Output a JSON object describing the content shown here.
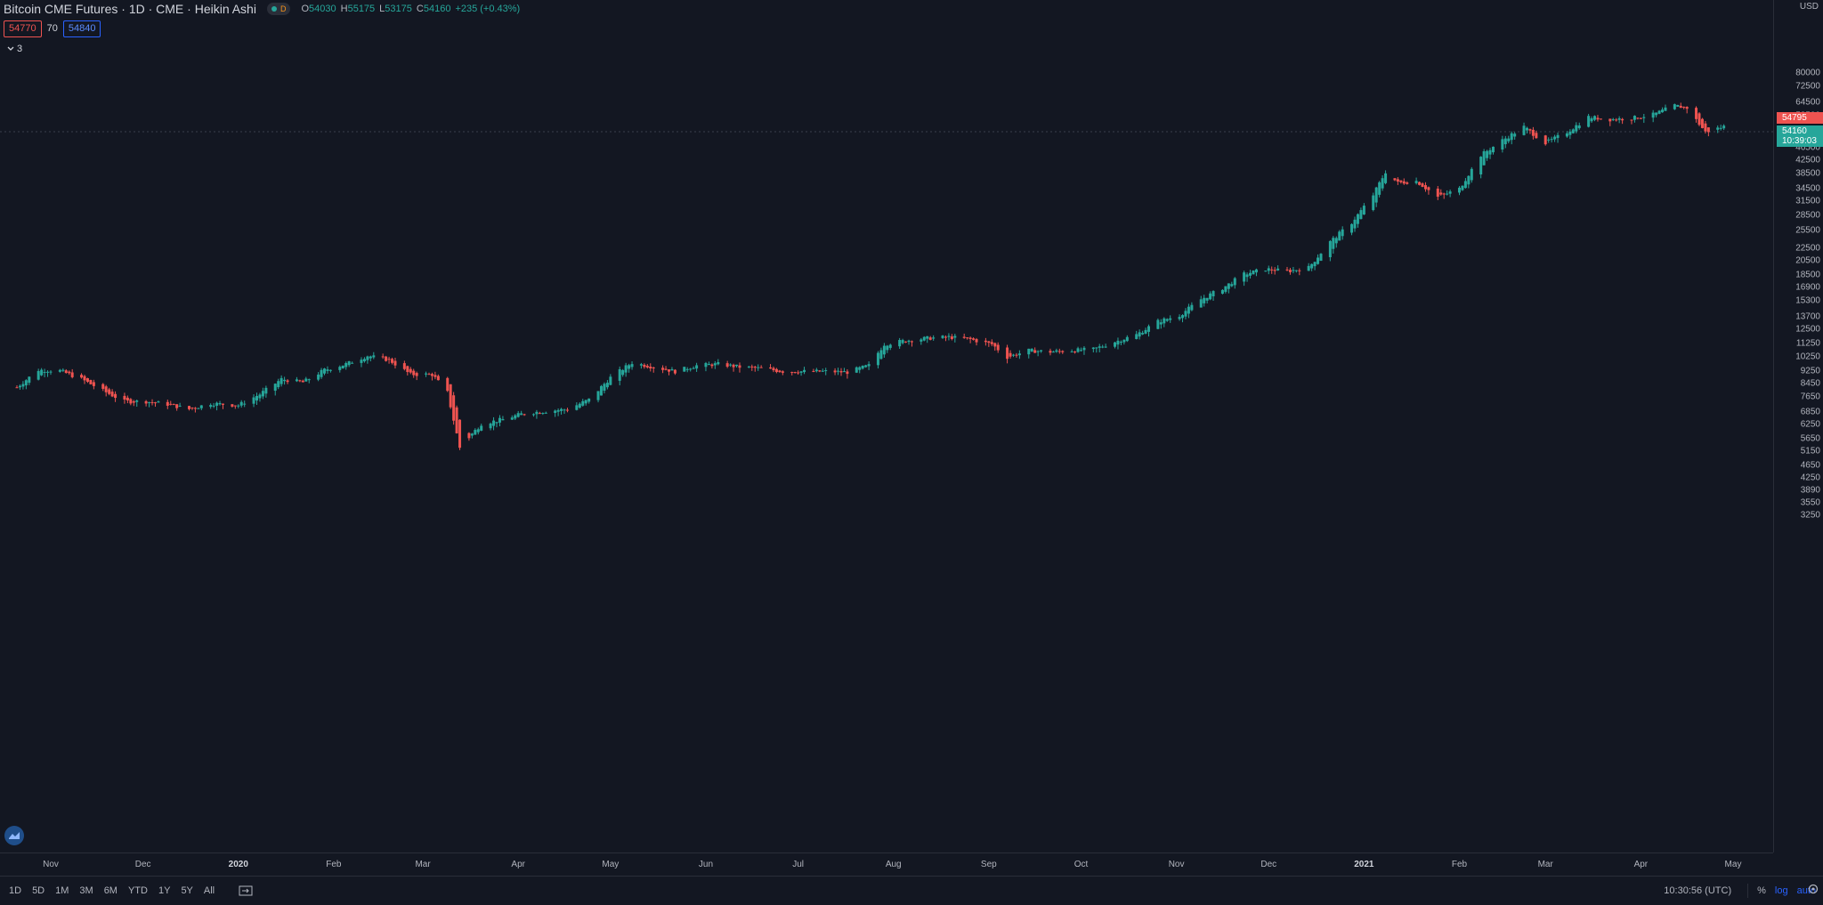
{
  "legend": {
    "title": "Bitcoin CME Futures · 1D · CME · Heikin Ashi",
    "badge_letter": "D",
    "ohlc": [
      {
        "key": "O",
        "value": "54030"
      },
      {
        "key": "H",
        "value": "55175"
      },
      {
        "key": "L",
        "value": "53175"
      },
      {
        "key": "C",
        "value": "54160"
      }
    ],
    "change": "+235 (+0.43%)"
  },
  "trade": {
    "sell": "54770",
    "spread": "70",
    "buy": "54840"
  },
  "indicators": {
    "toggle": "3"
  },
  "price_axis": {
    "unit": "USD",
    "ticks": [
      "80000",
      "72500",
      "64500",
      "58500",
      "46500",
      "42500",
      "38500",
      "34500",
      "31500",
      "28500",
      "25500",
      "22500",
      "20500",
      "18500",
      "16900",
      "15300",
      "13700",
      "12500",
      "11250",
      "10250",
      "9250",
      "8450",
      "7650",
      "6850",
      "6250",
      "5650",
      "5150",
      "4650",
      "4250",
      "3890",
      "3550",
      "3250"
    ],
    "last_price": "54795",
    "last_close": "54160",
    "countdown": "10:39:03"
  },
  "time_axis": {
    "ticks": [
      {
        "label": "Nov",
        "bold": false
      },
      {
        "label": "Dec",
        "bold": false
      },
      {
        "label": "2020",
        "bold": true
      },
      {
        "label": "Feb",
        "bold": false
      },
      {
        "label": "Mar",
        "bold": false
      },
      {
        "label": "Apr",
        "bold": false
      },
      {
        "label": "May",
        "bold": false
      },
      {
        "label": "Jun",
        "bold": false
      },
      {
        "label": "Jul",
        "bold": false
      },
      {
        "label": "Aug",
        "bold": false
      },
      {
        "label": "Sep",
        "bold": false
      },
      {
        "label": "Oct",
        "bold": false
      },
      {
        "label": "Nov",
        "bold": false
      },
      {
        "label": "Dec",
        "bold": false
      },
      {
        "label": "2021",
        "bold": true
      },
      {
        "label": "Feb",
        "bold": false
      },
      {
        "label": "Mar",
        "bold": false
      },
      {
        "label": "Apr",
        "bold": false
      },
      {
        "label": "May",
        "bold": false
      }
    ]
  },
  "bottom_bar": {
    "timeframes": [
      "1D",
      "5D",
      "1M",
      "3M",
      "6M",
      "YTD",
      "1Y",
      "5Y",
      "All"
    ],
    "clock": "10:30:56 (UTC)",
    "percent": "%",
    "log": "log",
    "auto": "auto"
  },
  "colors": {
    "background": "#131722",
    "up": "#26a69a",
    "down": "#ef5350",
    "grid": "#2a2e39",
    "accent": "#2962ff"
  },
  "chart_data": {
    "type": "candlestick-heikin-ashi",
    "scale": "log",
    "unit": "USD",
    "series": [
      {
        "date": "2019-10-21",
        "value": 8200
      },
      {
        "date": "2019-10-28",
        "value": 9300
      },
      {
        "date": "2019-11-04",
        "value": 9250
      },
      {
        "date": "2019-11-11",
        "value": 8700
      },
      {
        "date": "2019-11-18",
        "value": 8000
      },
      {
        "date": "2019-11-25",
        "value": 7400
      },
      {
        "date": "2019-12-02",
        "value": 7400
      },
      {
        "date": "2019-12-09",
        "value": 7250
      },
      {
        "date": "2019-12-16",
        "value": 7000
      },
      {
        "date": "2019-12-23",
        "value": 7300
      },
      {
        "date": "2020-01-01",
        "value": 7200
      },
      {
        "date": "2020-01-08",
        "value": 7800
      },
      {
        "date": "2020-01-15",
        "value": 8700
      },
      {
        "date": "2020-01-22",
        "value": 8500
      },
      {
        "date": "2020-01-29",
        "value": 9300
      },
      {
        "date": "2020-02-05",
        "value": 9700
      },
      {
        "date": "2020-02-12",
        "value": 10300
      },
      {
        "date": "2020-02-19",
        "value": 10000
      },
      {
        "date": "2020-02-26",
        "value": 9000
      },
      {
        "date": "2020-03-04",
        "value": 9000
      },
      {
        "date": "2020-03-09",
        "value": 7900
      },
      {
        "date": "2020-03-13",
        "value": 5300
      },
      {
        "date": "2020-03-20",
        "value": 6300
      },
      {
        "date": "2020-03-27",
        "value": 6500
      },
      {
        "date": "2020-04-03",
        "value": 6800
      },
      {
        "date": "2020-04-10",
        "value": 6900
      },
      {
        "date": "2020-04-17",
        "value": 7000
      },
      {
        "date": "2020-04-24",
        "value": 7500
      },
      {
        "date": "2020-05-01",
        "value": 8800
      },
      {
        "date": "2020-05-08",
        "value": 9800
      },
      {
        "date": "2020-05-15",
        "value": 9500
      },
      {
        "date": "2020-05-22",
        "value": 9200
      },
      {
        "date": "2020-05-29",
        "value": 9600
      },
      {
        "date": "2020-06-05",
        "value": 9700
      },
      {
        "date": "2020-06-12",
        "value": 9500
      },
      {
        "date": "2020-06-19",
        "value": 9400
      },
      {
        "date": "2020-06-26",
        "value": 9200
      },
      {
        "date": "2020-07-03",
        "value": 9200
      },
      {
        "date": "2020-07-10",
        "value": 9200
      },
      {
        "date": "2020-07-17",
        "value": 9150
      },
      {
        "date": "2020-07-24",
        "value": 9600
      },
      {
        "date": "2020-07-29",
        "value": 11200
      },
      {
        "date": "2020-08-05",
        "value": 11500
      },
      {
        "date": "2020-08-12",
        "value": 11700
      },
      {
        "date": "2020-08-19",
        "value": 11800
      },
      {
        "date": "2020-08-26",
        "value": 11600
      },
      {
        "date": "2020-09-02",
        "value": 11200
      },
      {
        "date": "2020-09-07",
        "value": 10200
      },
      {
        "date": "2020-09-14",
        "value": 10700
      },
      {
        "date": "2020-09-21",
        "value": 10600
      },
      {
        "date": "2020-09-28",
        "value": 10700
      },
      {
        "date": "2020-10-05",
        "value": 10800
      },
      {
        "date": "2020-10-12",
        "value": 11400
      },
      {
        "date": "2020-10-19",
        "value": 12000
      },
      {
        "date": "2020-10-26",
        "value": 13200
      },
      {
        "date": "2020-11-02",
        "value": 13800
      },
      {
        "date": "2020-11-09",
        "value": 15500
      },
      {
        "date": "2020-11-16",
        "value": 16800
      },
      {
        "date": "2020-11-23",
        "value": 18600
      },
      {
        "date": "2020-11-30",
        "value": 19300
      },
      {
        "date": "2020-12-07",
        "value": 19000
      },
      {
        "date": "2020-12-14",
        "value": 19500
      },
      {
        "date": "2020-12-21",
        "value": 23500
      },
      {
        "date": "2020-12-28",
        "value": 27000
      },
      {
        "date": "2021-01-04",
        "value": 33000
      },
      {
        "date": "2021-01-08",
        "value": 39000
      },
      {
        "date": "2021-01-12",
        "value": 36000
      },
      {
        "date": "2021-01-18",
        "value": 36500
      },
      {
        "date": "2021-01-25",
        "value": 32500
      },
      {
        "date": "2021-02-01",
        "value": 34500
      },
      {
        "date": "2021-02-08",
        "value": 44000
      },
      {
        "date": "2021-02-15",
        "value": 49000
      },
      {
        "date": "2021-02-22",
        "value": 54000
      },
      {
        "date": "2021-03-01",
        "value": 48000
      },
      {
        "date": "2021-03-08",
        "value": 52000
      },
      {
        "date": "2021-03-15",
        "value": 58000
      },
      {
        "date": "2021-03-22",
        "value": 57000
      },
      {
        "date": "2021-03-29",
        "value": 57500
      },
      {
        "date": "2021-04-05",
        "value": 59000
      },
      {
        "date": "2021-04-12",
        "value": 63000
      },
      {
        "date": "2021-04-16",
        "value": 62000
      },
      {
        "date": "2021-04-22",
        "value": 52000
      },
      {
        "date": "2021-04-28",
        "value": 54160
      }
    ]
  }
}
